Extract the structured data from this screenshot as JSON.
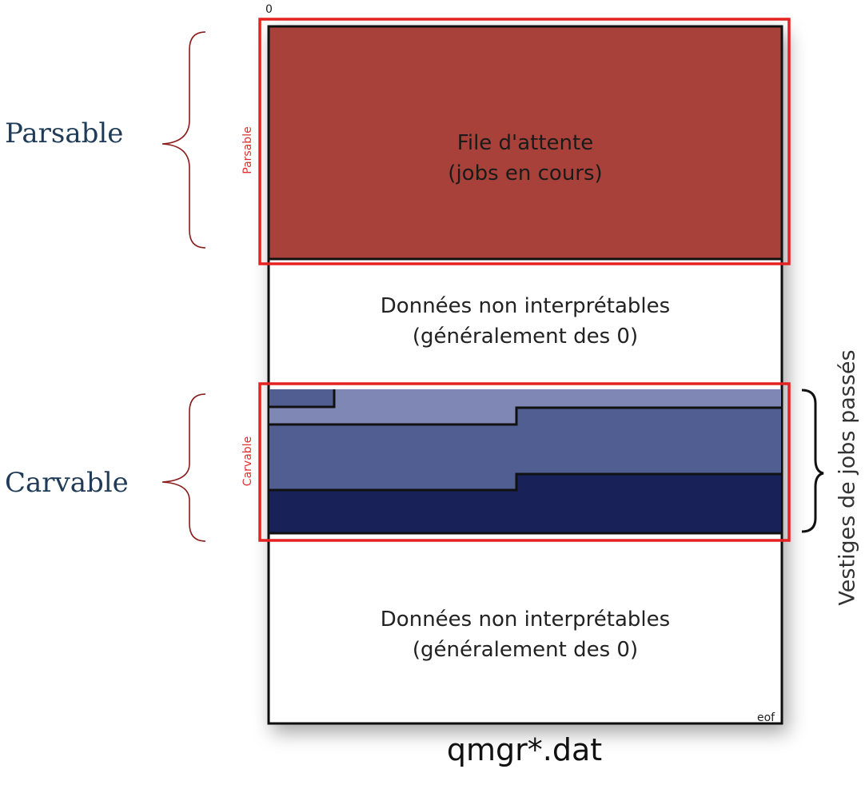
{
  "left_labels": {
    "parsable": "Parsable",
    "carvable": "Carvable"
  },
  "red_labels": {
    "parsable": "Parsable",
    "carvable": "Carvable"
  },
  "segments": {
    "queue": {
      "line1": "File d'attente",
      "line2": "(jobs en cours)"
    },
    "uninterpretable_top": {
      "line1": "Données non interprétables",
      "line2": "(généralement des 0)"
    },
    "uninterpretable_bottom": {
      "line1": "Données non interprétables",
      "line2": "(généralement des 0)"
    }
  },
  "markers": {
    "start": "0",
    "end": "eof"
  },
  "right_label": "Vestiges de jobs passés",
  "filename": "qmgr*.dat",
  "colors": {
    "queue_fill": "#a84139",
    "job_light": "#7f88b4",
    "job_mid": "#515e92",
    "job_dark": "#182258",
    "highlight": "#e52222",
    "brace": "#8b1a1a",
    "border": "#111111"
  }
}
